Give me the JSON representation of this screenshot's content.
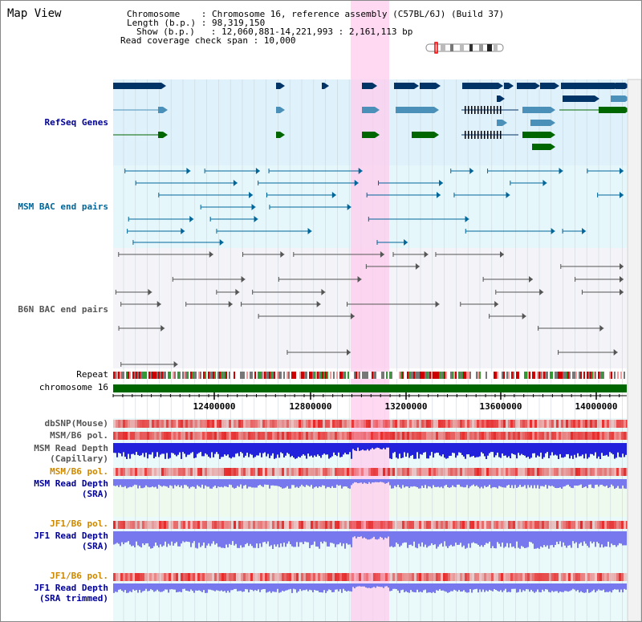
{
  "header": {
    "title": "Map View",
    "info_lines": [
      "Chromosome    : Chromosome 16, reference assembly (C57BL/6J) (Build 37)",
      "Length (b.p.) : 98,319,150",
      "Show (b.p.)   : 12,060,881-14,221,993 : 2,161,113 bp",
      "Read coverage check span : 10,000"
    ]
  },
  "tracks": {
    "refseq": "RefSeq Genes",
    "msm_bac": "MSM BAC end pairs",
    "b6n_bac": "B6N BAC end pairs",
    "repeat": "Repeat",
    "chromosome": "chromosome 16",
    "dbsnp": "dbSNP(Mouse)",
    "msm_b6_pol_1": "MSM/B6 pol.",
    "msm_depth_cap_1": "MSM Read Depth",
    "msm_depth_cap_2": "(Capillary)",
    "msm_b6_pol_2": "MSM/B6 pol.",
    "msm_depth_sra_1": "MSM Read Depth",
    "msm_depth_sra_2": "(SRA)",
    "jf1_pol_1": "JF1/B6 pol.",
    "jf1_depth_1": "JF1 Read Depth",
    "jf1_depth_2": "(SRA)",
    "jf1_pol_2": "JF1/B6 pol.",
    "jf1_trim_1": "JF1 Read Depth",
    "jf1_trim_2": "(SRA trimmed)"
  },
  "axis": {
    "ticks": [
      "12400000",
      "12800000",
      "13200000",
      "13600000",
      "14000000"
    ]
  },
  "colors": {
    "refseq_dark": "#003366",
    "refseq_light": "#4a90b8",
    "refseq_green": "#006600",
    "msm_bac": "#006699",
    "b6n_bac": "#555555",
    "highlight": "#ffccee",
    "chromosome_bar": "#006600",
    "label_blue": "#000099",
    "label_orange": "#cc8800"
  }
}
